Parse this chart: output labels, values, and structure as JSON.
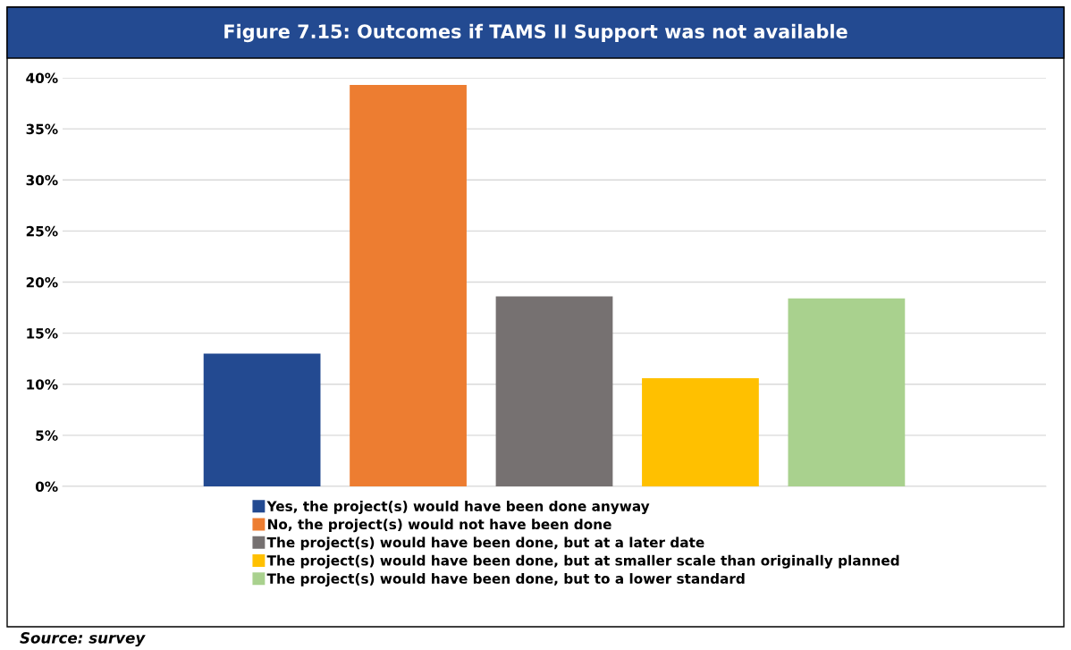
{
  "chart_data": {
    "type": "bar",
    "title": "Figure 7.15: Outcomes if TAMS II Support was not available",
    "categories": [
      null
    ],
    "series": [
      {
        "name": "Yes, the project(s) would have been done anyway",
        "color": "#234a91",
        "values": [
          13.0
        ]
      },
      {
        "name": "No, the project(s) would not have been done",
        "color": "#ed7d31",
        "values": [
          39.3
        ]
      },
      {
        "name": "The project(s) would have been done, but at a later date",
        "color": "#767171",
        "values": [
          18.6
        ]
      },
      {
        "name": "The project(s) would have been done, but at smaller scale than originally planned",
        "color": "#ffc000",
        "values": [
          10.6
        ]
      },
      {
        "name": "The project(s) would have been done, but to a lower standard",
        "color": "#a9d18e",
        "values": [
          18.4
        ]
      }
    ],
    "ylim": [
      0,
      40
    ],
    "yticks": [
      {
        "value": 0,
        "label": "0%"
      },
      {
        "value": 5,
        "label": "5%"
      },
      {
        "value": 10,
        "label": "10%"
      },
      {
        "value": 15,
        "label": "15%"
      },
      {
        "value": 20,
        "label": "20%"
      },
      {
        "value": 25,
        "label": "25%"
      },
      {
        "value": 30,
        "label": "30%"
      },
      {
        "value": 35,
        "label": "35%"
      },
      {
        "value": 40,
        "label": "40%"
      }
    ],
    "grid": "y",
    "legend": "bottom",
    "annotations": [
      "Source: survey"
    ]
  }
}
